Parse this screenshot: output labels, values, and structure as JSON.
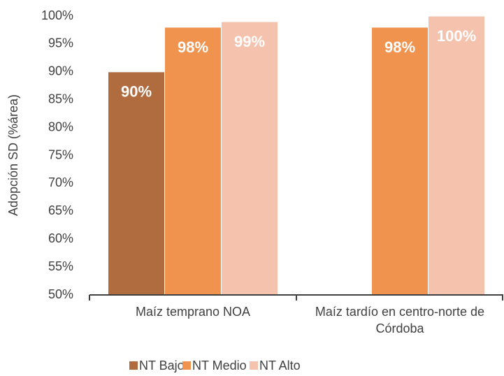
{
  "chart_data": {
    "type": "bar",
    "y_label": "Adopción SD (%área)",
    "categories": [
      "Maíz temprano NOA",
      "Maíz tardío en centro-norte de Córdoba"
    ],
    "series": [
      {
        "name": "NT Bajo",
        "color": "#b06c3f",
        "values": [
          90,
          null
        ],
        "value_labels": [
          "90%",
          null
        ]
      },
      {
        "name": "NT Medio",
        "color": "#f0934f",
        "values": [
          98,
          98
        ],
        "value_labels": [
          "98%",
          "98%"
        ]
      },
      {
        "name": "NT Alto",
        "color": "#f5c2ae",
        "values": [
          99,
          100
        ],
        "value_labels": [
          "99%",
          "100%"
        ]
      }
    ],
    "ylim": [
      50,
      100
    ],
    "yticks": [
      {
        "value": 50,
        "label": "50%"
      },
      {
        "value": 55,
        "label": "55%"
      },
      {
        "value": 60,
        "label": "60%"
      },
      {
        "value": 65,
        "label": "65%"
      },
      {
        "value": 70,
        "label": "70%"
      },
      {
        "value": 75,
        "label": "75%"
      },
      {
        "value": 80,
        "label": "80%"
      },
      {
        "value": 85,
        "label": "85%"
      },
      {
        "value": 90,
        "label": "90%"
      },
      {
        "value": 95,
        "label": "95%"
      },
      {
        "value": 100,
        "label": "100%"
      }
    ],
    "legend": "bottom"
  }
}
